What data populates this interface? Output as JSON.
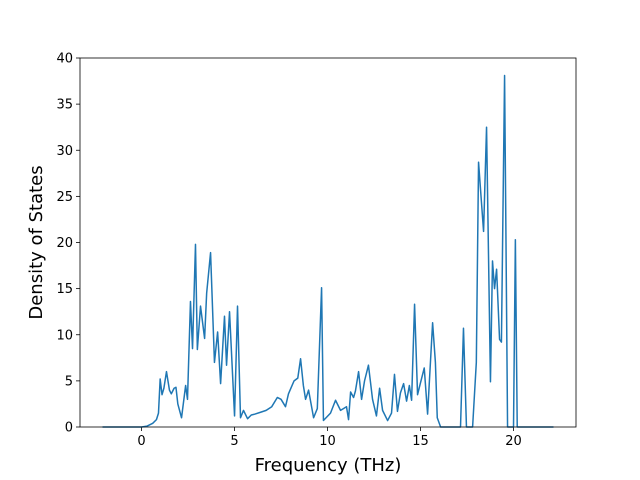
{
  "chart_data": {
    "type": "line",
    "xlabel": "Frequency (THz)",
    "ylabel": "Density of States",
    "color": "#1f77b4",
    "xlim": [
      -3.31,
      23.36
    ],
    "ylim": [
      0,
      40
    ],
    "xticks": [
      0,
      5,
      10,
      15,
      20
    ],
    "yticks": [
      0,
      5,
      10,
      15,
      20,
      25,
      30,
      35,
      40
    ],
    "grid": false,
    "x": [
      -2.1,
      0,
      0.3,
      0.6,
      0.8,
      0.91,
      1.0,
      1.1,
      1.2,
      1.34,
      1.5,
      1.6,
      1.75,
      1.85,
      1.95,
      2.15,
      2.37,
      2.47,
      2.63,
      2.74,
      2.9,
      3.0,
      3.17,
      3.39,
      3.5,
      3.71,
      3.92,
      4.09,
      4.25,
      4.46,
      4.57,
      4.73,
      5.0,
      5.16,
      5.32,
      5.48,
      5.7,
      5.9,
      6.1,
      6.4,
      6.7,
      7.0,
      7.3,
      7.5,
      7.74,
      7.9,
      8.05,
      8.2,
      8.4,
      8.55,
      8.7,
      8.82,
      8.98,
      9.25,
      9.45,
      9.68,
      9.78,
      10.16,
      10.43,
      10.7,
      11.02,
      11.13,
      11.24,
      11.4,
      11.5,
      11.67,
      11.83,
      11.99,
      12.2,
      12.42,
      12.63,
      12.8,
      12.96,
      13.23,
      13.44,
      13.6,
      13.76,
      13.92,
      14.09,
      14.25,
      14.4,
      14.52,
      14.68,
      14.84,
      15.0,
      15.2,
      15.38,
      15.65,
      15.8,
      15.9,
      16.08,
      17.15,
      17.31,
      17.47,
      17.8,
      18.0,
      18.12,
      18.39,
      18.55,
      18.76,
      18.87,
      18.98,
      19.09,
      19.25,
      19.35,
      19.52,
      19.68,
      20.0,
      20.1,
      20.2,
      22.15
    ],
    "values": [
      0,
      0,
      0.1,
      0.4,
      0.8,
      1.5,
      5.2,
      3.5,
      4.2,
      6.0,
      4.0,
      3.6,
      4.2,
      4.3,
      2.5,
      1.0,
      4.5,
      3.0,
      13.6,
      8.5,
      19.8,
      8.4,
      13.1,
      9.6,
      14.5,
      18.9,
      7.0,
      10.3,
      4.7,
      12.0,
      6.7,
      12.5,
      1.2,
      13.1,
      1.0,
      1.8,
      0.9,
      1.3,
      1.4,
      1.6,
      1.8,
      2.2,
      3.2,
      3.0,
      2.2,
      3.6,
      4.3,
      5.0,
      5.3,
      7.4,
      4.5,
      3.0,
      4.0,
      1.0,
      2.0,
      15.1,
      0.7,
      1.5,
      2.9,
      1.8,
      2.2,
      0.8,
      3.8,
      3.2,
      3.9,
      6.0,
      3.0,
      5.0,
      6.7,
      3.0,
      1.2,
      4.2,
      1.8,
      0.7,
      1.5,
      5.7,
      1.7,
      3.7,
      4.7,
      2.8,
      4.5,
      2.9,
      13.3,
      3.5,
      4.8,
      6.4,
      1.4,
      11.3,
      7.0,
      1.0,
      0,
      0,
      10.7,
      0,
      0,
      7.0,
      28.7,
      21.2,
      32.5,
      4.9,
      18.0,
      15.0,
      17.1,
      9.5,
      9.2,
      38.1,
      0,
      0,
      20.3,
      0,
      0
    ]
  }
}
